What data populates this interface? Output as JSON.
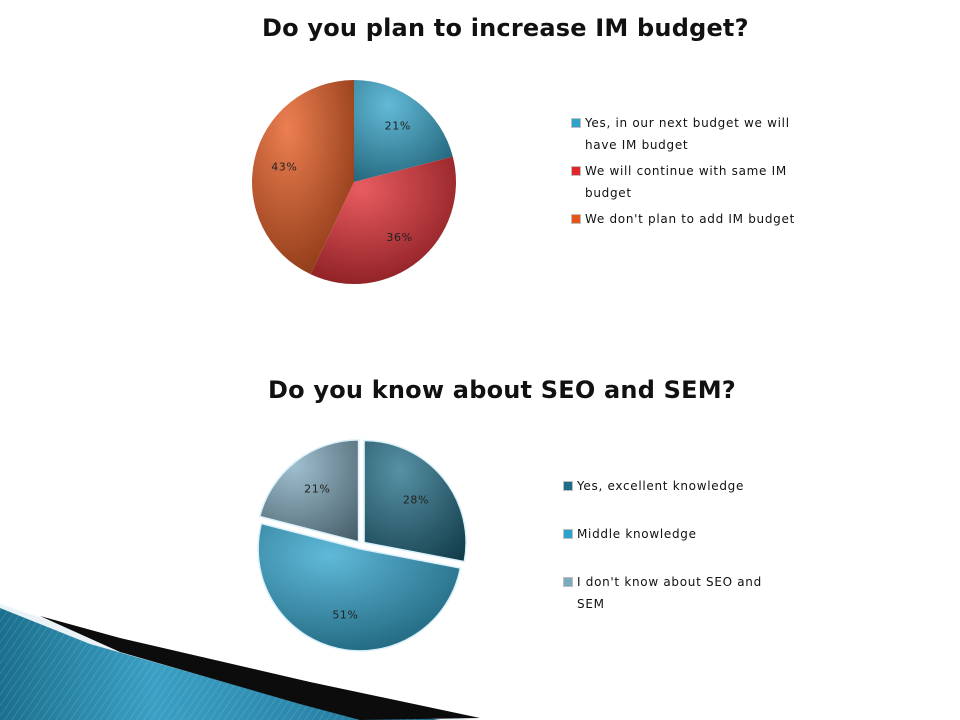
{
  "chart_data": [
    {
      "type": "pie",
      "title": "Do you plan to increase IM budget?",
      "categories": [
        "Yes, in our next budget we will have IM budget",
        "We will continue with same IM budget",
        "We don't plan to add IM budget"
      ],
      "values": [
        21,
        36,
        43
      ],
      "data_labels": [
        "21%",
        "36%",
        "43%"
      ],
      "colors": [
        "#2fa3c9",
        "#e0252b",
        "#e55417"
      ],
      "legend": "right"
    },
    {
      "type": "pie",
      "title": "Do you know about SEO and SEM?",
      "categories": [
        "Yes, excellent knowledge",
        "Middle knowledge",
        "I don't know about SEO and SEM"
      ],
      "values": [
        28,
        51,
        21
      ],
      "data_labels": [
        "28%",
        "51%",
        "21%"
      ],
      "colors": [
        "#1e6c85",
        "#2aa2cc",
        "#7fa9be"
      ],
      "legend": "right"
    }
  ]
}
